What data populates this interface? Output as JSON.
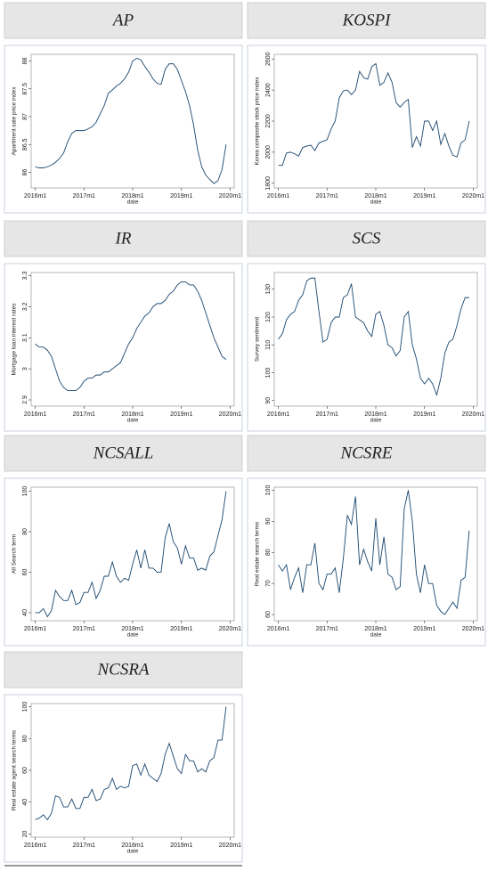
{
  "chart_data": [
    {
      "type": "line",
      "title": "AP",
      "y_label": "Apartment sale price index",
      "x_label": "date",
      "color": "#1a476f",
      "x": [
        0,
        1,
        2,
        3,
        4,
        5,
        6,
        7,
        8,
        9,
        10,
        11,
        12,
        13,
        14,
        15,
        16,
        17,
        18,
        19,
        20,
        21,
        22,
        23,
        24,
        25,
        26,
        27,
        28,
        29,
        30,
        31,
        32,
        33,
        34,
        35,
        36,
        37,
        38,
        39,
        40,
        41,
        42,
        43,
        44,
        45,
        46,
        47
      ],
      "values": [
        86.1,
        86.08,
        86.08,
        86.1,
        86.13,
        86.18,
        86.25,
        86.35,
        86.55,
        86.7,
        86.75,
        86.75,
        86.75,
        86.78,
        86.82,
        86.9,
        87.05,
        87.2,
        87.42,
        87.48,
        87.55,
        87.6,
        87.68,
        87.8,
        88.0,
        88.05,
        88.02,
        87.9,
        87.8,
        87.68,
        87.6,
        87.58,
        87.85,
        87.95,
        87.95,
        87.85,
        87.65,
        87.45,
        87.2,
        86.85,
        86.4,
        86.1,
        85.95,
        85.87,
        85.8,
        85.85,
        86.05,
        86.5
      ],
      "xlim": [
        -1,
        49
      ],
      "xticks": [
        {
          "value": 0,
          "label": "2016m1"
        },
        {
          "value": 12,
          "label": "2017m1"
        },
        {
          "value": 24,
          "label": "2018m1"
        },
        {
          "value": 36,
          "label": "2019m1"
        },
        {
          "value": 48,
          "label": "2020m1"
        }
      ],
      "ylim": [
        85.72,
        88.12
      ],
      "yticks": [
        86,
        86.5,
        87,
        87.5,
        88
      ]
    },
    {
      "type": "line",
      "title": "KOSPI",
      "y_label": "Korea composite stock price index",
      "x_label": "date",
      "color": "#1a476f",
      "x": [
        0,
        1,
        2,
        3,
        4,
        5,
        6,
        7,
        8,
        9,
        10,
        11,
        12,
        13,
        14,
        15,
        16,
        17,
        18,
        19,
        20,
        21,
        22,
        23,
        24,
        25,
        26,
        27,
        28,
        29,
        30,
        31,
        32,
        33,
        34,
        35,
        36,
        37,
        38,
        39,
        40,
        41,
        42,
        43,
        44,
        45,
        46,
        47
      ],
      "values": [
        1915,
        1915,
        1995,
        2000,
        1990,
        1975,
        2030,
        2040,
        2045,
        2010,
        2060,
        2070,
        2080,
        2150,
        2200,
        2350,
        2395,
        2400,
        2370,
        2400,
        2520,
        2480,
        2470,
        2550,
        2570,
        2430,
        2450,
        2510,
        2450,
        2320,
        2290,
        2320,
        2340,
        2030,
        2100,
        2040,
        2200,
        2200,
        2140,
        2200,
        2050,
        2120,
        2040,
        1980,
        1970,
        2060,
        2080,
        2200
      ],
      "xlim": [
        -1,
        49
      ],
      "xticks": [
        {
          "value": 0,
          "label": "2016m1"
        },
        {
          "value": 12,
          "label": "2017m1"
        },
        {
          "value": 24,
          "label": "2018m1"
        },
        {
          "value": 36,
          "label": "2019m1"
        },
        {
          "value": 48,
          "label": "2020m1"
        }
      ],
      "ylim": [
        1770,
        2630
      ],
      "yticks": [
        1800,
        2000,
        2200,
        2400,
        2600
      ]
    },
    {
      "type": "line",
      "title": "IR",
      "y_label": "Mortgage loan interest rates",
      "x_label": "date",
      "color": "#1a476f",
      "x": [
        0,
        1,
        2,
        3,
        4,
        5,
        6,
        7,
        8,
        9,
        10,
        11,
        12,
        13,
        14,
        15,
        16,
        17,
        18,
        19,
        20,
        21,
        22,
        23,
        24,
        25,
        26,
        27,
        28,
        29,
        30,
        31,
        32,
        33,
        34,
        35,
        36,
        37,
        38,
        39,
        40,
        41,
        42,
        43,
        44,
        45,
        46,
        47
      ],
      "values": [
        3.08,
        3.07,
        3.07,
        3.06,
        3.04,
        3.0,
        2.96,
        2.94,
        2.93,
        2.93,
        2.93,
        2.94,
        2.96,
        2.97,
        2.97,
        2.98,
        2.98,
        2.99,
        2.99,
        3.0,
        3.01,
        3.02,
        3.05,
        3.08,
        3.1,
        3.13,
        3.15,
        3.17,
        3.18,
        3.2,
        3.21,
        3.21,
        3.22,
        3.24,
        3.25,
        3.27,
        3.28,
        3.28,
        3.27,
        3.27,
        3.25,
        3.22,
        3.18,
        3.14,
        3.1,
        3.07,
        3.04,
        3.03
      ],
      "xlim": [
        -1,
        49
      ],
      "xticks": [
        {
          "value": 0,
          "label": "2016m1"
        },
        {
          "value": 12,
          "label": "2017m1"
        },
        {
          "value": 24,
          "label": "2018m1"
        },
        {
          "value": 36,
          "label": "2019m1"
        },
        {
          "value": 48,
          "label": "2020m1"
        }
      ],
      "ylim": [
        2.88,
        3.31
      ],
      "yticks": [
        2.9,
        3,
        3.1,
        3.2,
        3.3
      ]
    },
    {
      "type": "line",
      "title": "SCS",
      "y_label": "Survey sentiment",
      "x_label": "date",
      "color": "#1a476f",
      "x": [
        0,
        1,
        2,
        3,
        4,
        5,
        6,
        7,
        8,
        9,
        10,
        11,
        12,
        13,
        14,
        15,
        16,
        17,
        18,
        19,
        20,
        21,
        22,
        23,
        24,
        25,
        26,
        27,
        28,
        29,
        30,
        31,
        32,
        33,
        34,
        35,
        36,
        37,
        38,
        39,
        40,
        41,
        42,
        43,
        44,
        45,
        46,
        47
      ],
      "values": [
        112,
        114,
        119,
        121,
        122,
        126,
        128,
        133,
        134,
        134,
        122,
        111,
        112,
        118,
        120,
        120,
        127,
        128,
        132,
        120,
        119,
        118,
        115,
        113,
        121,
        122,
        117,
        110,
        109,
        106,
        108,
        120,
        122,
        110,
        105,
        98,
        96,
        98,
        96,
        92,
        98,
        107,
        111,
        112,
        117,
        123,
        127,
        127
      ],
      "xlim": [
        -1,
        49
      ],
      "xticks": [
        {
          "value": 0,
          "label": "2016m1"
        },
        {
          "value": 12,
          "label": "2017m1"
        },
        {
          "value": 24,
          "label": "2018m1"
        },
        {
          "value": 36,
          "label": "2019m1"
        },
        {
          "value": 48,
          "label": "2020m1"
        }
      ],
      "ylim": [
        88,
        136
      ],
      "yticks": [
        90,
        100,
        110,
        120,
        130
      ]
    },
    {
      "type": "line",
      "title": "NCSALL",
      "y_label": "All Search term",
      "x_label": "date",
      "color": "#1a476f",
      "x": [
        0,
        1,
        2,
        3,
        4,
        5,
        6,
        7,
        8,
        9,
        10,
        11,
        12,
        13,
        14,
        15,
        16,
        17,
        18,
        19,
        20,
        21,
        22,
        23,
        24,
        25,
        26,
        27,
        28,
        29,
        30,
        31,
        32,
        33,
        34,
        35,
        36,
        37,
        38,
        39,
        40,
        41,
        42,
        43,
        44,
        45,
        46,
        47
      ],
      "values": [
        40,
        40,
        42,
        38,
        41,
        51,
        48,
        46,
        46,
        51,
        44,
        45,
        50,
        50,
        55,
        47,
        51,
        58,
        58,
        65,
        58,
        55,
        57,
        56,
        64,
        71,
        62,
        71,
        62,
        62,
        60,
        60,
        77,
        84,
        75,
        72,
        64,
        73,
        67,
        67,
        61,
        62,
        61,
        68,
        70,
        78,
        86,
        100
      ],
      "xlim": [
        -1,
        49
      ],
      "xticks": [
        {
          "value": 0,
          "label": "2016m1"
        },
        {
          "value": 12,
          "label": "2017m1"
        },
        {
          "value": 24,
          "label": "2018m1"
        },
        {
          "value": 36,
          "label": "2019m1"
        },
        {
          "value": 48,
          "label": "2020m1"
        }
      ],
      "ylim": [
        36,
        102
      ],
      "yticks": [
        40,
        60,
        80,
        100
      ]
    },
    {
      "type": "line",
      "title": "NCSRE",
      "y_label": "Real estate search terms",
      "x_label": "date",
      "color": "#1a476f",
      "x": [
        0,
        1,
        2,
        3,
        4,
        5,
        6,
        7,
        8,
        9,
        10,
        11,
        12,
        13,
        14,
        15,
        16,
        17,
        18,
        19,
        20,
        21,
        22,
        23,
        24,
        25,
        26,
        27,
        28,
        29,
        30,
        31,
        32,
        33,
        34,
        35,
        36,
        37,
        38,
        39,
        40,
        41,
        42,
        43,
        44,
        45,
        46,
        47
      ],
      "values": [
        76,
        74,
        76,
        68,
        72,
        75,
        67,
        76,
        76,
        83,
        70,
        68,
        73,
        73,
        75,
        67,
        78,
        92,
        89,
        98,
        76,
        81,
        77,
        74,
        91,
        76,
        85,
        73,
        72,
        68,
        69,
        94,
        100,
        90,
        73,
        67,
        76,
        70,
        70,
        63,
        61,
        60,
        62,
        64,
        62,
        71,
        72,
        87
      ],
      "xlim": [
        -1,
        49
      ],
      "xticks": [
        {
          "value": 0,
          "label": "2016m1"
        },
        {
          "value": 12,
          "label": "2017m1"
        },
        {
          "value": 24,
          "label": "2018m1"
        },
        {
          "value": 36,
          "label": "2019m1"
        },
        {
          "value": 48,
          "label": "2020m1"
        }
      ],
      "ylim": [
        58,
        101
      ],
      "yticks": [
        60,
        70,
        80,
        90,
        100
      ]
    },
    {
      "type": "line",
      "title": "NCSRA",
      "y_label": "Real estate agent search terms",
      "x_label": "date",
      "color": "#1a476f",
      "x": [
        0,
        1,
        2,
        3,
        4,
        5,
        6,
        7,
        8,
        9,
        10,
        11,
        12,
        13,
        14,
        15,
        16,
        17,
        18,
        19,
        20,
        21,
        22,
        23,
        24,
        25,
        26,
        27,
        28,
        29,
        30,
        31,
        32,
        33,
        34,
        35,
        36,
        37,
        38,
        39,
        40,
        41,
        42,
        43,
        44,
        45,
        46,
        47
      ],
      "values": [
        29,
        30,
        32,
        29,
        33,
        44,
        43,
        37,
        37,
        42,
        36,
        36,
        43,
        43,
        48,
        41,
        42,
        48,
        49,
        55,
        48,
        50,
        49,
        50,
        63,
        64,
        57,
        64,
        57,
        55,
        53,
        58,
        70,
        77,
        69,
        61,
        58,
        70,
        66,
        66,
        59,
        61,
        59,
        66,
        68,
        79,
        79,
        100
      ],
      "xlim": [
        -1,
        49
      ],
      "xticks": [
        {
          "value": 0,
          "label": "2016m1"
        },
        {
          "value": 12,
          "label": "2017m1"
        },
        {
          "value": 24,
          "label": "2018m1"
        },
        {
          "value": 36,
          "label": "2019m1"
        },
        {
          "value": 48,
          "label": "2020m1"
        }
      ],
      "ylim": [
        18,
        102
      ],
      "yticks": [
        20,
        40,
        60,
        80,
        100
      ]
    }
  ]
}
